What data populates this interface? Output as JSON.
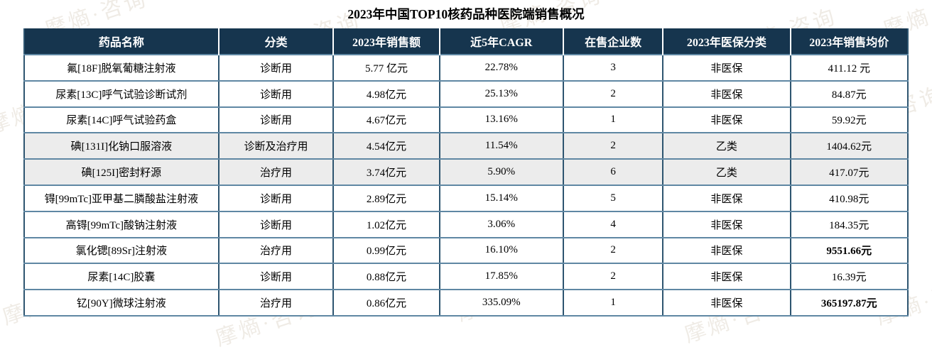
{
  "title": "2023年中国TOP10核药品种医院端销售概况",
  "watermark_text": "摩熵·咨询",
  "colors": {
    "header_bg": "#16354e",
    "header_text": "#ffffff",
    "body_text": "#000000",
    "shaded_row": "#ececec",
    "border_dark": "#2e5570",
    "border_light": "#5f87a3",
    "watermark": "#b8a88e"
  },
  "table": {
    "columns": [
      {
        "label": "药品名称",
        "name": "drug-name"
      },
      {
        "label": "分类",
        "name": "category"
      },
      {
        "label": "2023年销售额",
        "name": "sales-2023"
      },
      {
        "label": "近5年CAGR",
        "name": "cagr-5y"
      },
      {
        "label": "在售企业数",
        "name": "company-count"
      },
      {
        "label": "2023年医保分类",
        "name": "insurance-class"
      },
      {
        "label": "2023年销售均价",
        "name": "avg-price"
      }
    ],
    "rows": [
      {
        "cells": [
          "氟[18F]脱氧葡糖注射液",
          "诊断用",
          "5.77 亿元",
          "22.78%",
          "3",
          "非医保",
          "411.12 元"
        ],
        "shaded": false,
        "bold_price": false
      },
      {
        "cells": [
          "尿素[13C]呼气试验诊断试剂",
          "诊断用",
          "4.98亿元",
          "25.13%",
          "2",
          "非医保",
          "84.87元"
        ],
        "shaded": false,
        "bold_price": false
      },
      {
        "cells": [
          "尿素[14C]呼气试验药盒",
          "诊断用",
          "4.67亿元",
          "13.16%",
          "1",
          "非医保",
          "59.92元"
        ],
        "shaded": false,
        "bold_price": false
      },
      {
        "cells": [
          "碘[131I]化钠口服溶液",
          "诊断及治疗用",
          "4.54亿元",
          "11.54%",
          "2",
          "乙类",
          "1404.62元"
        ],
        "shaded": true,
        "bold_price": false
      },
      {
        "cells": [
          "碘[125I]密封籽源",
          "治疗用",
          "3.74亿元",
          "5.90%",
          "6",
          "乙类",
          "417.07元"
        ],
        "shaded": true,
        "bold_price": false
      },
      {
        "cells": [
          "锝[99mTc]亚甲基二膦酸盐注射液",
          "诊断用",
          "2.89亿元",
          "15.14%",
          "5",
          "非医保",
          "410.98元"
        ],
        "shaded": false,
        "bold_price": false
      },
      {
        "cells": [
          "高锝[99mTc]酸钠注射液",
          "诊断用",
          "1.02亿元",
          "3.06%",
          "4",
          "非医保",
          "184.35元"
        ],
        "shaded": false,
        "bold_price": false
      },
      {
        "cells": [
          "氯化锶[89Sr]注射液",
          "治疗用",
          "0.99亿元",
          "16.10%",
          "2",
          "非医保",
          "9551.66元"
        ],
        "shaded": false,
        "bold_price": true
      },
      {
        "cells": [
          "尿素[14C]胶囊",
          "诊断用",
          "0.88亿元",
          "17.85%",
          "2",
          "非医保",
          "16.39元"
        ],
        "shaded": false,
        "bold_price": false
      },
      {
        "cells": [
          "钇[90Y]微球注射液",
          "治疗用",
          "0.86亿元",
          "335.09%",
          "1",
          "非医保",
          "365197.87元"
        ],
        "shaded": false,
        "bold_price": true
      }
    ]
  }
}
